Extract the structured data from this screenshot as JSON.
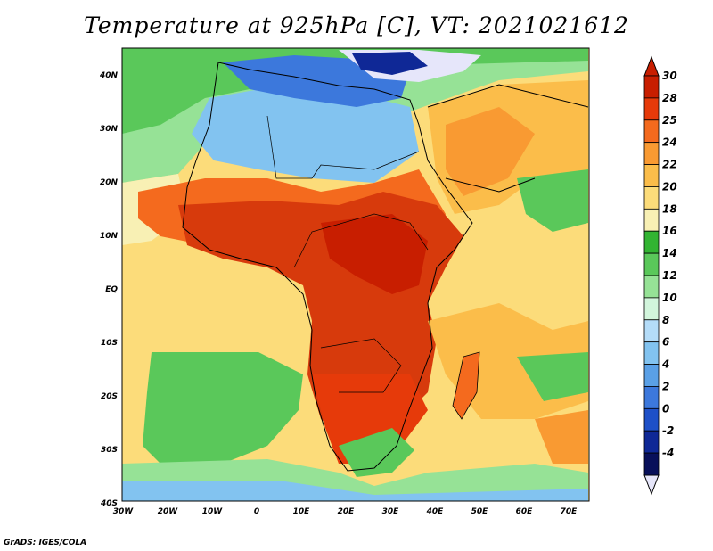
{
  "title": "Temperature at 925hPa [C], VT: 2021021612",
  "credit": "GrADS: IGES/COLA",
  "map": {
    "lat_labels": [
      "40N",
      "30N",
      "20N",
      "10N",
      "EQ",
      "10S",
      "20S",
      "30S",
      "40S"
    ],
    "lon_labels": [
      "30W",
      "20W",
      "10W",
      "0",
      "10E",
      "20E",
      "30E",
      "40E",
      "50E",
      "60E",
      "70E"
    ],
    "lat_range": [
      -40,
      45
    ],
    "lon_range": [
      -30,
      76
    ]
  },
  "colorbar": {
    "labels": [
      "30",
      "28",
      "25",
      "24",
      "22",
      "20",
      "18",
      "16",
      "14",
      "12",
      "10",
      "8",
      "6",
      "4",
      "2",
      "0",
      "-2",
      "-4"
    ],
    "colors": [
      "#c81e00",
      "#e63a0a",
      "#f46a1e",
      "#f99a32",
      "#fbbd4a",
      "#fcdc7a",
      "#f8f0b4",
      "#32b432",
      "#5ac85a",
      "#96e296",
      "#d2f5dc",
      "#b4dcf8",
      "#82c3f0",
      "#5aa0e6",
      "#3c78dc",
      "#1e50c8",
      "#0f2896",
      "#08105a"
    ],
    "over_color": "#c81e00",
    "under_color": "#e6e6fa"
  },
  "fields": {
    "ocean_color": "#fcdc7a",
    "hot_color": "#d73a0c",
    "sahara_cool_color": "#82c3f0",
    "mediterranean_color": "#3c78dc",
    "south_atlantic_color": "#5ac85a"
  }
}
